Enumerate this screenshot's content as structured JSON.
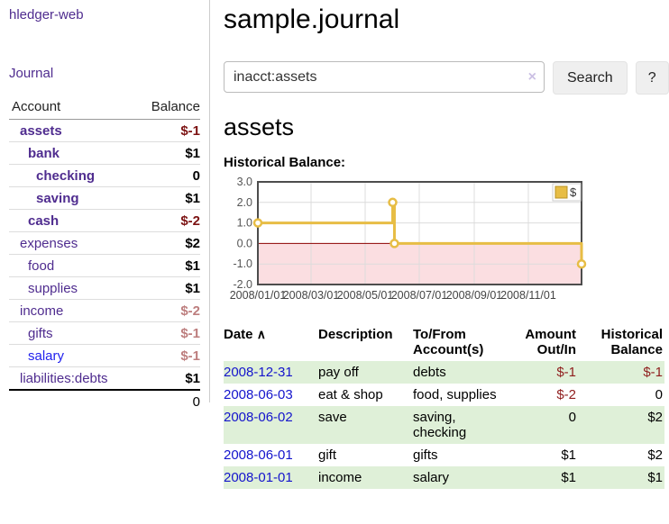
{
  "app": {
    "title": "hledger-web"
  },
  "sidebar": {
    "journal_label": "Journal",
    "table": {
      "account_header": "Account",
      "balance_header": "Balance",
      "rows": [
        {
          "account": "assets",
          "balance": "$-1",
          "depth": 1,
          "bold": true,
          "balance_style": "neg-strong"
        },
        {
          "account": "bank",
          "balance": "$1",
          "depth": 2,
          "bold": true,
          "balance_style": "pos"
        },
        {
          "account": "checking",
          "balance": "0",
          "depth": 3,
          "bold": true,
          "balance_style": "pos"
        },
        {
          "account": "saving",
          "balance": "$1",
          "depth": 3,
          "bold": true,
          "balance_style": "pos"
        },
        {
          "account": "cash",
          "balance": "$-2",
          "depth": 2,
          "bold": true,
          "balance_style": "neg-strong"
        },
        {
          "account": "expenses",
          "balance": "$2",
          "depth": 1,
          "bold": false,
          "balance_style": "pos"
        },
        {
          "account": "food",
          "balance": "$1",
          "depth": 2,
          "bold": false,
          "balance_style": "pos"
        },
        {
          "account": "supplies",
          "balance": "$1",
          "depth": 2,
          "bold": false,
          "balance_style": "pos"
        },
        {
          "account": "income",
          "balance": "$-2",
          "depth": 1,
          "bold": false,
          "balance_style": "neg-soft"
        },
        {
          "account": "gifts",
          "balance": "$-1",
          "depth": 2,
          "bold": false,
          "balance_style": "neg-soft"
        },
        {
          "account": "salary",
          "balance": "$-1",
          "depth": 2,
          "bold": false,
          "balance_style": "neg-soft",
          "link_style": "blue"
        },
        {
          "account": "liabilities:debts",
          "balance": "$1",
          "depth": 1,
          "bold": false,
          "balance_style": "pos"
        }
      ],
      "total": "0"
    }
  },
  "header": {
    "title": "sample.journal"
  },
  "search": {
    "value": "inacct:assets",
    "clear_icon": "×",
    "button_label": "Search",
    "help_label": "?"
  },
  "main": {
    "account_title": "assets",
    "chart_label": "Historical Balance:"
  },
  "chart_data": {
    "type": "line",
    "step": true,
    "title": "Historical Balance",
    "series": [
      {
        "name": "$",
        "color": "#e7bd45",
        "points": [
          [
            "2008-01-01",
            1
          ],
          [
            "2008-06-01",
            2
          ],
          [
            "2008-06-03",
            0
          ],
          [
            "2008-12-31",
            -1
          ]
        ]
      }
    ],
    "x_range": [
      "2008-01-01",
      "2008-12-31"
    ],
    "x_ticks": [
      "2008/01/01",
      "2008/03/01",
      "2008/05/01",
      "2008/07/01",
      "2008/09/01",
      "2008/11/01"
    ],
    "y_ticks": [
      3.0,
      2.0,
      1.0,
      0.0,
      -1.0,
      -2.0
    ],
    "y_tick_labels": [
      "3.0",
      "2.0",
      "1.0",
      "0.0",
      "-1.0",
      "-2.0"
    ],
    "ylim": [
      -2,
      3
    ],
    "grid": true,
    "legend": {
      "label": "$",
      "position": "top-right",
      "swatch_color": "#e7bd45"
    },
    "negative_region_color": "#fbdee1",
    "zero_line_color": "#8b0000",
    "border_color": "#4d4d4d",
    "grid_color": "#dcdcdc"
  },
  "register": {
    "headers": {
      "date": "Date",
      "sort_icon": "∧",
      "description": "Description",
      "accounts": "To/From Account(s)",
      "amount": "Amount Out/In",
      "balance": "Historical Balance"
    },
    "rows": [
      {
        "date": "2008-12-31",
        "description": "pay off",
        "accounts": "debts",
        "amount": "$-1",
        "balance": "$-1",
        "amount_neg": true,
        "balance_neg": true,
        "green": true
      },
      {
        "date": "2008-06-03",
        "description": "eat & shop",
        "accounts": "food, supplies",
        "amount": "$-2",
        "balance": "0",
        "amount_neg": true,
        "balance_neg": false,
        "green": false
      },
      {
        "date": "2008-06-02",
        "description": "save",
        "accounts": "saving, checking",
        "amount": "0",
        "balance": "$2",
        "amount_neg": false,
        "balance_neg": false,
        "green": true
      },
      {
        "date": "2008-06-01",
        "description": "gift",
        "accounts": "gifts",
        "amount": "$1",
        "balance": "$2",
        "amount_neg": false,
        "balance_neg": false,
        "green": false
      },
      {
        "date": "2008-01-01",
        "description": "income",
        "accounts": "salary",
        "amount": "$1",
        "balance": "$1",
        "amount_neg": false,
        "balance_neg": false,
        "green": true
      }
    ]
  }
}
